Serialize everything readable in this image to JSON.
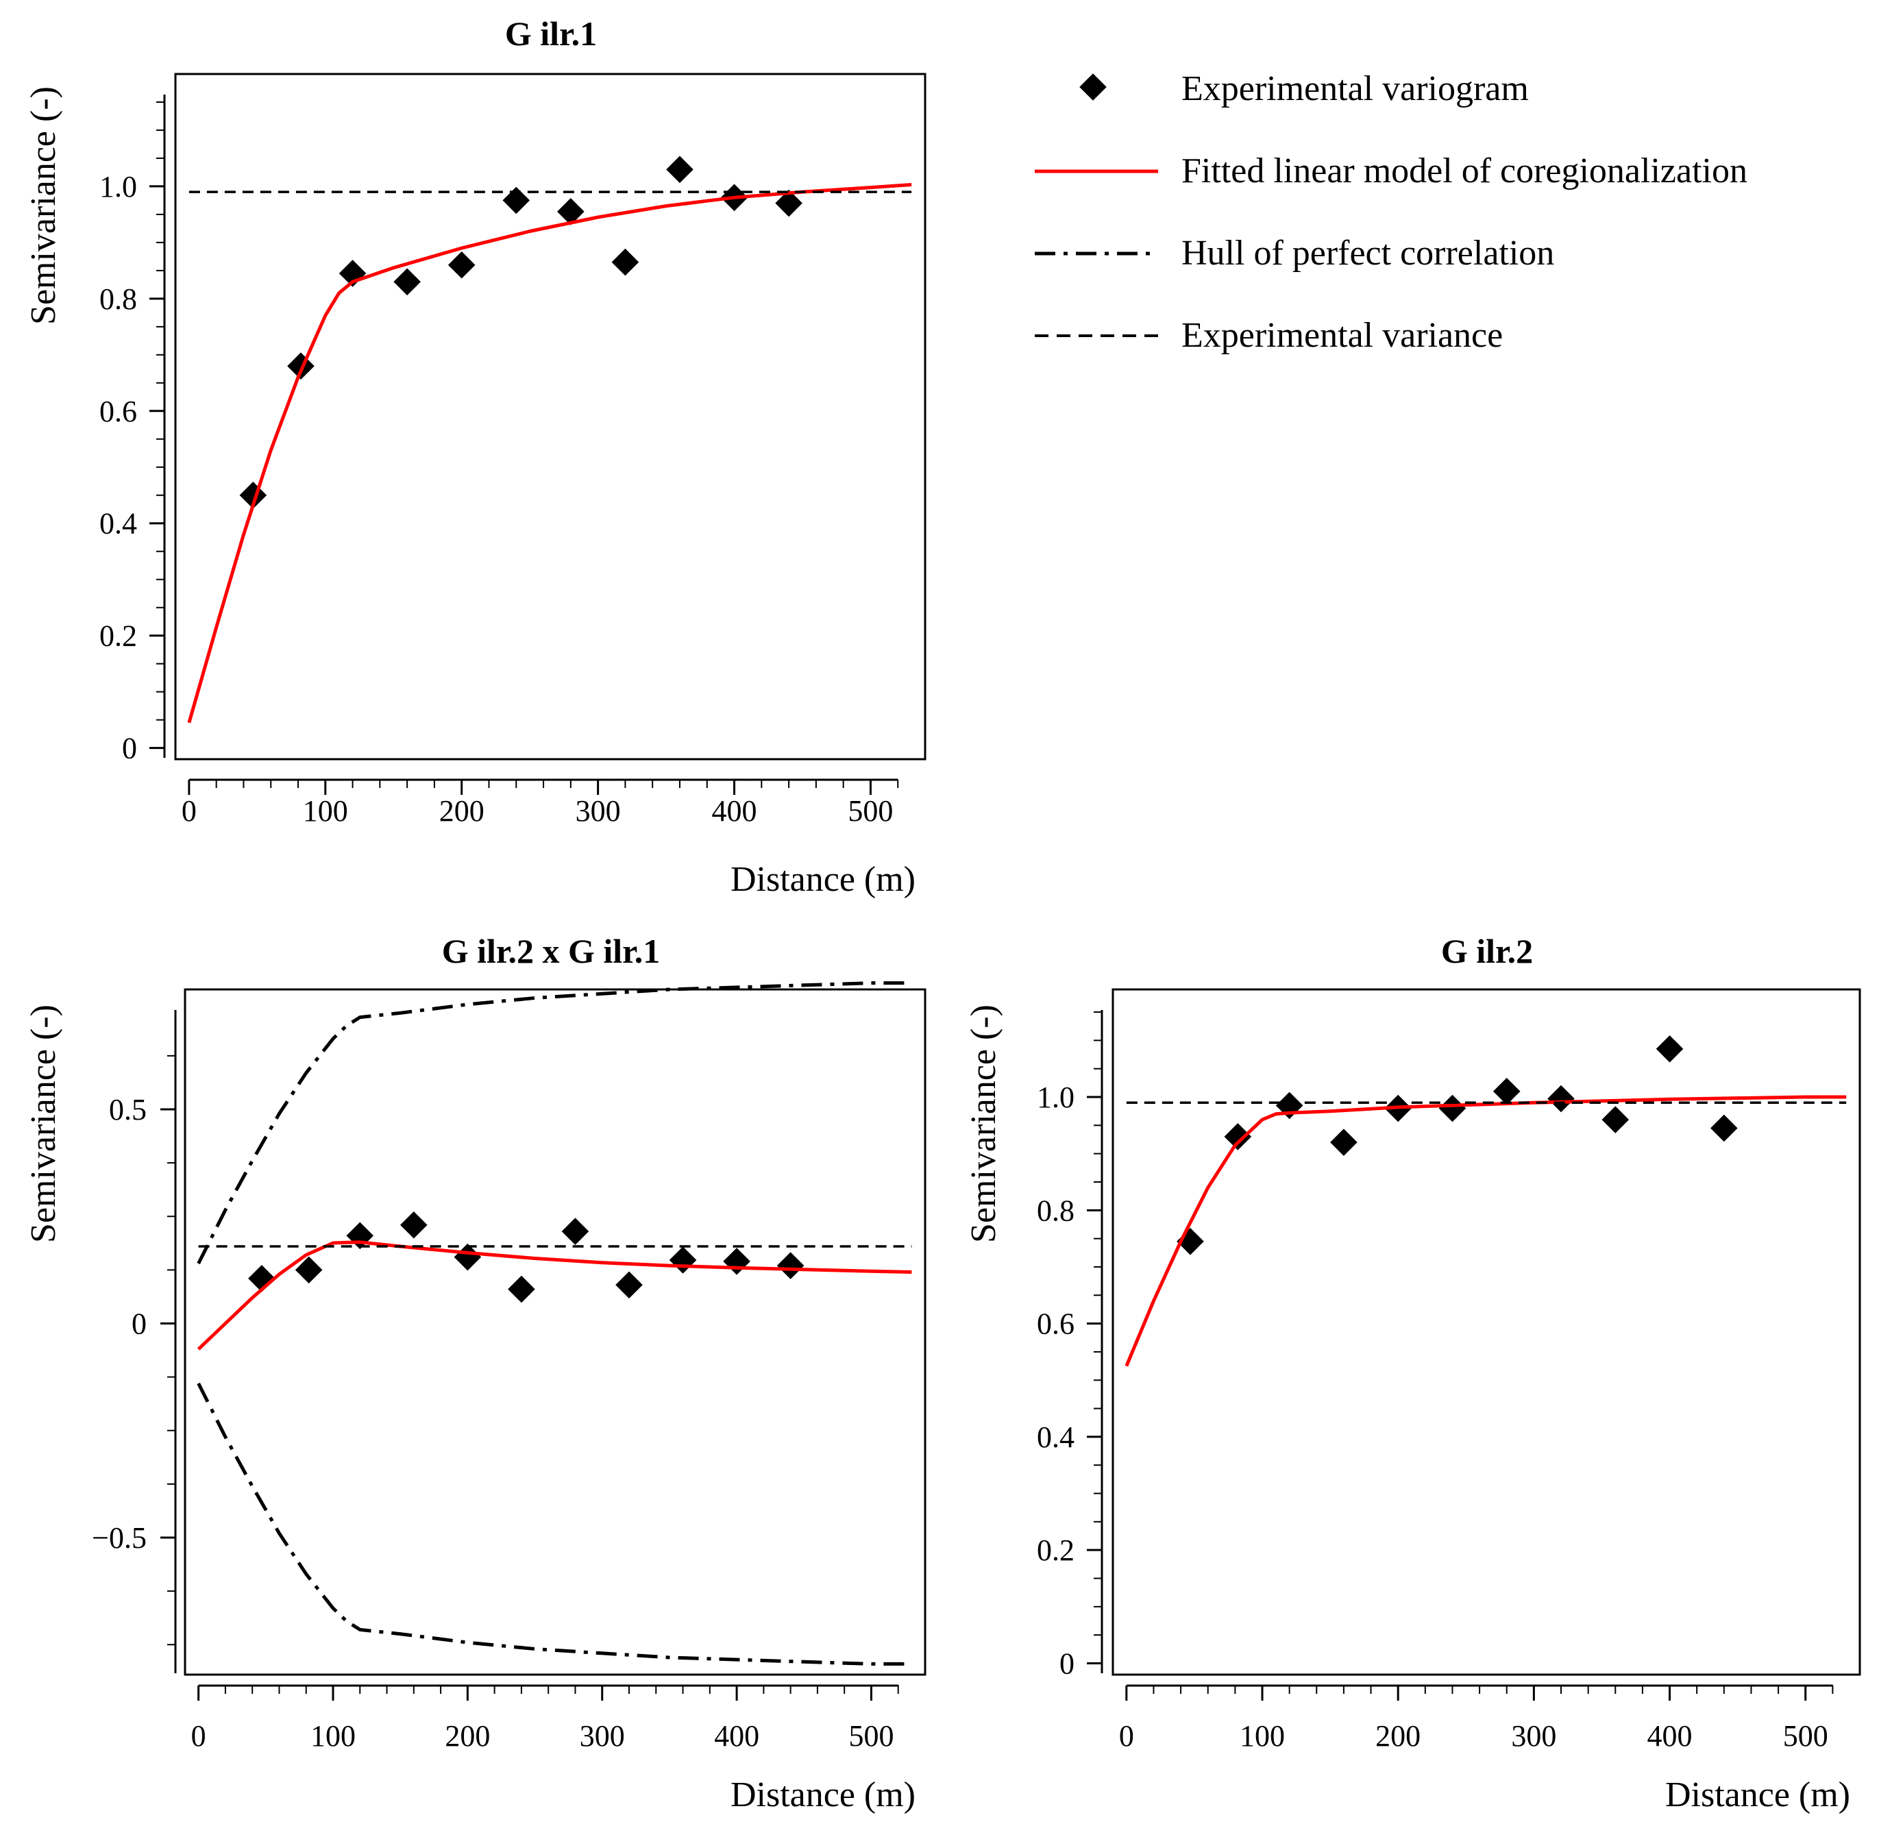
{
  "legend": {
    "items": [
      {
        "key": "experimental",
        "label": "Experimental variogram",
        "style": "diamond",
        "color": "#000000"
      },
      {
        "key": "model",
        "label": "Fitted linear model of coregionalization",
        "style": "solid",
        "color": "#ff0000"
      },
      {
        "key": "hull",
        "label": "Hull of perfect correlation",
        "style": "dashdot",
        "color": "#000000"
      },
      {
        "key": "variance",
        "label": "Experimental variance",
        "style": "dashed",
        "color": "#000000"
      }
    ]
  },
  "chart_data": [
    {
      "id": "g-ilr1",
      "type": "scatter",
      "title": "G ilr.1",
      "xlabel": "Distance (m)",
      "ylabel": "Semivariance (-)",
      "xlim": [
        -10,
        540
      ],
      "ylim": [
        -0.02,
        1.2
      ],
      "xticks": [
        0,
        100,
        200,
        300,
        400,
        500
      ],
      "xtick_labels": [
        "0",
        "100",
        "200",
        "300",
        "400",
        "500"
      ],
      "yticks": [
        0,
        0.2,
        0.4,
        0.6,
        0.8,
        1.0
      ],
      "ytick_labels": [
        "0",
        "0.2",
        "0.4",
        "0.6",
        "0.8",
        "1.0"
      ],
      "series": [
        {
          "name": "Experimental variogram",
          "kind": "points",
          "x": [
            47,
            82,
            120,
            160,
            200,
            240,
            280,
            320,
            360,
            400,
            440
          ],
          "y": [
            0.45,
            0.68,
            0.845,
            0.83,
            0.86,
            0.975,
            0.955,
            0.865,
            1.03,
            0.98,
            0.97
          ]
        },
        {
          "name": "Fitted linear model of coregionalization",
          "kind": "line",
          "x": [
            0,
            20,
            40,
            60,
            80,
            100,
            110,
            120,
            150,
            200,
            250,
            300,
            350,
            400,
            450,
            500,
            530
          ],
          "y": [
            0.045,
            0.215,
            0.38,
            0.53,
            0.66,
            0.77,
            0.81,
            0.83,
            0.855,
            0.89,
            0.92,
            0.945,
            0.965,
            0.98,
            0.99,
            0.998,
            1.003
          ]
        },
        {
          "name": "Experimental variance",
          "kind": "hline",
          "value": 0.99,
          "x": [
            0,
            530
          ]
        }
      ]
    },
    {
      "id": "g-ilr2-x-g-ilr1",
      "type": "scatter",
      "title": "G ilr.2 x G ilr.1",
      "xlabel": "Distance (m)",
      "ylabel": "Semivariance (-)",
      "xlim": [
        -10,
        540
      ],
      "ylim": [
        -0.82,
        0.78
      ],
      "xticks": [
        0,
        100,
        200,
        300,
        400,
        500
      ],
      "xtick_labels": [
        "0",
        "100",
        "200",
        "300",
        "400",
        "500"
      ],
      "yticks": [
        -0.5,
        0,
        0.5
      ],
      "ytick_labels": [
        "−0.5",
        "0",
        "0.5"
      ],
      "series": [
        {
          "name": "Experimental variogram",
          "kind": "points",
          "x": [
            47,
            82,
            120,
            160,
            200,
            240,
            280,
            320,
            360,
            400,
            440
          ],
          "y": [
            0.105,
            0.125,
            0.205,
            0.23,
            0.155,
            0.08,
            0.215,
            0.09,
            0.148,
            0.145,
            0.135
          ]
        },
        {
          "name": "Fitted linear model of coregionalization",
          "kind": "line",
          "x": [
            0,
            20,
            40,
            60,
            80,
            100,
            120,
            150,
            200,
            250,
            300,
            350,
            400,
            450,
            500,
            530
          ],
          "y": [
            -0.06,
            0.0,
            0.06,
            0.115,
            0.16,
            0.188,
            0.19,
            0.18,
            0.165,
            0.152,
            0.142,
            0.135,
            0.13,
            0.126,
            0.122,
            0.12
          ]
        },
        {
          "name": "Hull of perfect correlation",
          "kind": "line",
          "x": [
            0,
            20,
            40,
            60,
            80,
            100,
            110,
            120,
            150,
            200,
            250,
            300,
            350,
            400,
            450,
            500,
            530
          ],
          "y": [
            0.14,
            0.265,
            0.38,
            0.49,
            0.585,
            0.665,
            0.695,
            0.715,
            0.725,
            0.745,
            0.76,
            0.77,
            0.78,
            0.785,
            0.79,
            0.795,
            0.795
          ]
        },
        {
          "name": "Hull of perfect correlation",
          "kind": "line",
          "x": [
            0,
            20,
            40,
            60,
            80,
            100,
            110,
            120,
            150,
            200,
            250,
            300,
            350,
            400,
            450,
            500,
            530
          ],
          "y": [
            -0.14,
            -0.265,
            -0.38,
            -0.49,
            -0.585,
            -0.665,
            -0.695,
            -0.715,
            -0.725,
            -0.745,
            -0.76,
            -0.77,
            -0.78,
            -0.785,
            -0.79,
            -0.795,
            -0.795
          ]
        },
        {
          "name": "Experimental variance",
          "kind": "hline",
          "value": 0.18,
          "x": [
            0,
            530
          ]
        }
      ]
    },
    {
      "id": "g-ilr2",
      "type": "scatter",
      "title": "G ilr.2",
      "xlabel": "Distance (m)",
      "ylabel": "Semivariance (-)",
      "xlim": [
        -10,
        540
      ],
      "ylim": [
        -0.02,
        1.19
      ],
      "xticks": [
        0,
        100,
        200,
        300,
        400,
        500
      ],
      "xtick_labels": [
        "0",
        "100",
        "200",
        "300",
        "400",
        "500"
      ],
      "yticks": [
        0,
        0.2,
        0.4,
        0.6,
        0.8,
        1.0
      ],
      "ytick_labels": [
        "0",
        "0.2",
        "0.4",
        "0.6",
        "0.8",
        "1.0"
      ],
      "series": [
        {
          "name": "Experimental variogram",
          "kind": "points",
          "x": [
            47,
            82,
            120,
            160,
            200,
            240,
            280,
            320,
            360,
            400,
            440
          ],
          "y": [
            0.745,
            0.93,
            0.985,
            0.92,
            0.98,
            0.98,
            1.01,
            0.997,
            0.96,
            1.085,
            0.945
          ]
        },
        {
          "name": "Fitted linear model of coregionalization",
          "kind": "line",
          "x": [
            0,
            20,
            40,
            60,
            80,
            100,
            110,
            120,
            150,
            200,
            300,
            400,
            500,
            530
          ],
          "y": [
            0.525,
            0.64,
            0.745,
            0.84,
            0.915,
            0.96,
            0.97,
            0.972,
            0.975,
            0.982,
            0.99,
            0.996,
            1.0,
            1.0
          ]
        },
        {
          "name": "Experimental variance",
          "kind": "hline",
          "value": 0.99,
          "x": [
            0,
            530
          ]
        }
      ]
    }
  ]
}
